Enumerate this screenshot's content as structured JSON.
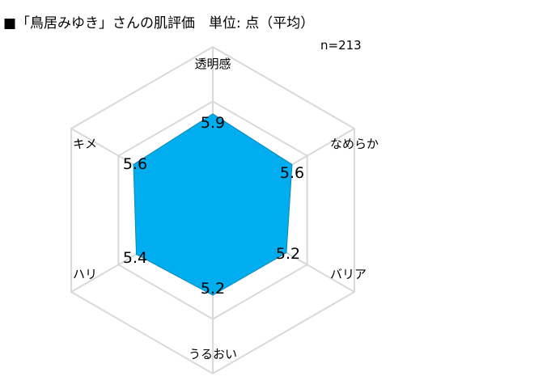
{
  "header": {
    "title": "■「鳥居みゆき」さんの肌評価　単位: 点（平均）",
    "sample_size": "n=213"
  },
  "chart_data": {
    "type": "radar",
    "title": "■「鳥居みゆき」さんの肌評価　単位: 点（平均）",
    "annotation": "n=213",
    "categories": [
      "透明感",
      "なめらか",
      "バリア",
      "うるおい",
      "ハリ",
      "キメ"
    ],
    "series": [
      {
        "values": [
          5.9,
          5.6,
          5.2,
          5.2,
          5.4,
          5.6
        ]
      }
    ],
    "value_labels": [
      "5.9",
      "5.6",
      "5.2",
      "5.2",
      "5.4",
      "5.6"
    ],
    "rmax": 10,
    "rings": 3,
    "grid": true,
    "legend": "none",
    "colors": {
      "fill": "#00aeef",
      "stroke": "#0a88b8",
      "grid": "#d9d9d9"
    }
  }
}
